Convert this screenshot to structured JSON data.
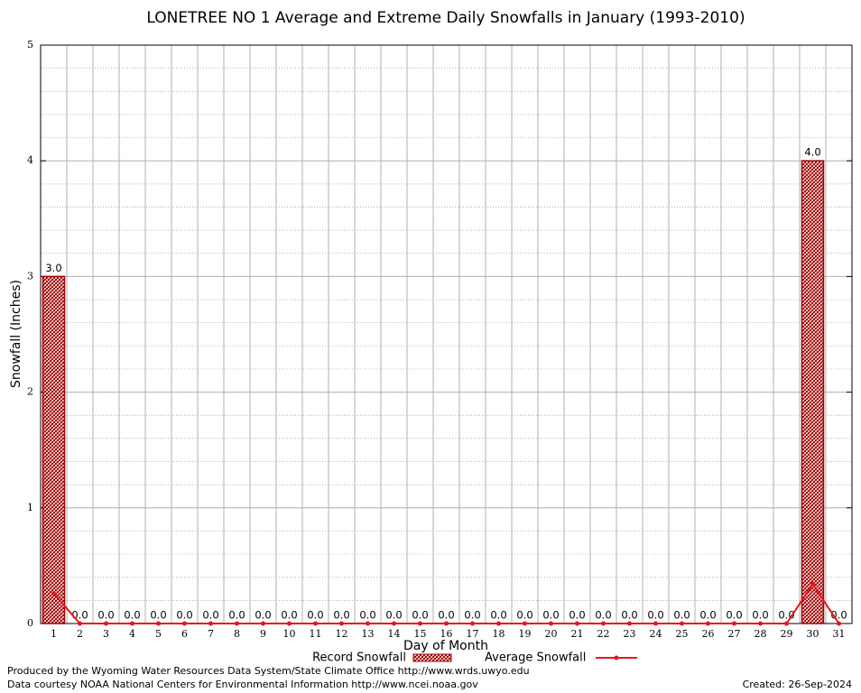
{
  "chart_data": {
    "type": "bar",
    "title": "LONETREE NO 1 Average and Extreme Daily Snowfalls in January (1993-2010)",
    "x_label": "Day of Month",
    "y_label": "Snowfall (Inches)",
    "categories": [
      "1",
      "2",
      "3",
      "4",
      "5",
      "6",
      "7",
      "8",
      "9",
      "10",
      "11",
      "12",
      "13",
      "14",
      "15",
      "16",
      "17",
      "18",
      "19",
      "20",
      "21",
      "22",
      "23",
      "24",
      "25",
      "26",
      "27",
      "28",
      "29",
      "30",
      "31"
    ],
    "series": [
      {
        "name": "Record Snowfall",
        "type": "bar",
        "color": "#a00000",
        "values": [
          3,
          0,
          0,
          0,
          0,
          0,
          0,
          0,
          0,
          0,
          0,
          0,
          0,
          0,
          0,
          0,
          0,
          0,
          0,
          0,
          0,
          0,
          0,
          0,
          0,
          0,
          0,
          0,
          0,
          4,
          0
        ],
        "value_labels": [
          "3.0",
          "0.0",
          "0.0",
          "0.0",
          "0.0",
          "0.0",
          "0.0",
          "0.0",
          "0.0",
          "0.0",
          "0.0",
          "0.0",
          "0.0",
          "0.0",
          "0.0",
          "0.0",
          "0.0",
          "0.0",
          "0.0",
          "0.0",
          "0.0",
          "0.0",
          "0.0",
          "0.0",
          "0.0",
          "0.0",
          "0.0",
          "0.0",
          "0.0",
          "4.0",
          "0.0"
        ]
      },
      {
        "name": "Average Snowfall",
        "type": "line",
        "color": "#e8141c",
        "values": [
          0.26,
          0,
          0,
          0,
          0,
          0,
          0,
          0,
          0,
          0,
          0,
          0,
          0,
          0,
          0,
          0,
          0,
          0,
          0,
          0,
          0,
          0,
          0,
          0,
          0,
          0,
          0,
          0,
          0,
          0.34,
          0
        ]
      }
    ],
    "ylim": [
      0,
      5
    ],
    "yticks": [
      0,
      1,
      2,
      3,
      4,
      5
    ],
    "grid": true,
    "minor_grid_step": 0.2,
    "footer": {
      "produced": "Produced by the Wyoming Water Resources Data System/State Climate Office http://www.wrds.uwyo.edu",
      "courtesy": "Data courtesy NOAA National Centers for Environmental Information http://www.ncei.noaa.gov",
      "created": "Created:  26-Sep-2024"
    }
  }
}
